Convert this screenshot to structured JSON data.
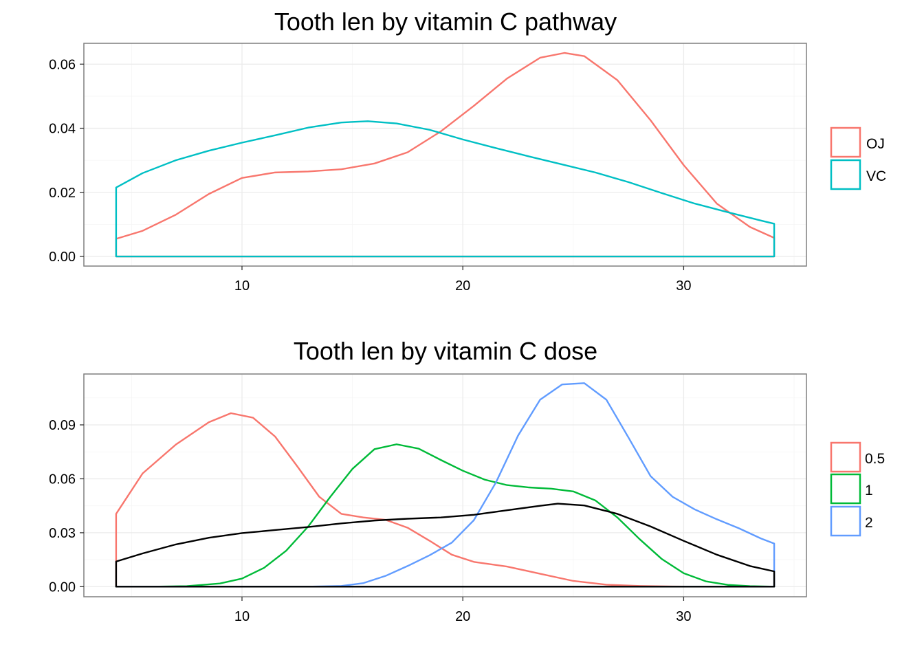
{
  "chart_data": [
    {
      "type": "line",
      "subtype": "density",
      "title": "Tooth len by vitamin C pathway",
      "xlabel": "",
      "ylabel": "",
      "xlim": [
        2.84,
        35.56
      ],
      "ylim": [
        -0.003,
        0.0665
      ],
      "x_ticks": [
        10,
        20,
        30
      ],
      "y_ticks": [
        0.0,
        0.02,
        0.04,
        0.06
      ],
      "x_tick_labels": [
        "10",
        "20",
        "30"
      ],
      "y_tick_labels": [
        "0.00",
        "0.02",
        "0.04",
        "0.06"
      ],
      "x_range": [
        4.3,
        34.1
      ],
      "grid": true,
      "legend": {
        "placement": "right",
        "entries": [
          "OJ",
          "VC"
        ]
      },
      "series": [
        {
          "name": "OJ",
          "color": "#F8766D",
          "x": [
            4.3,
            5.5,
            7,
            8.5,
            10,
            11.5,
            13,
            14.5,
            16,
            17.5,
            19,
            20.5,
            22,
            23.5,
            24.6,
            25.5,
            27,
            28.5,
            30,
            31.5,
            33,
            34.1
          ],
          "y": [
            0.0055,
            0.008,
            0.013,
            0.0195,
            0.0245,
            0.0262,
            0.0265,
            0.0272,
            0.029,
            0.0325,
            0.039,
            0.047,
            0.0555,
            0.062,
            0.0635,
            0.0625,
            0.055,
            0.0425,
            0.0285,
            0.0165,
            0.0092,
            0.0058
          ]
        },
        {
          "name": "VC",
          "color": "#00BFC4",
          "x": [
            4.3,
            5.5,
            7,
            8.5,
            10,
            11.5,
            13,
            14.5,
            15.7,
            17,
            18.5,
            20,
            21.5,
            23,
            24.5,
            26,
            27.5,
            29,
            30.5,
            32,
            33.5,
            34.1
          ],
          "y": [
            0.0215,
            0.026,
            0.03,
            0.033,
            0.0355,
            0.0378,
            0.0402,
            0.0418,
            0.0422,
            0.0415,
            0.0395,
            0.0365,
            0.0338,
            0.0312,
            0.0287,
            0.0262,
            0.0232,
            0.0198,
            0.0165,
            0.0138,
            0.0112,
            0.0102
          ]
        }
      ]
    },
    {
      "type": "line",
      "subtype": "density",
      "title": "Tooth len by vitamin C dose",
      "xlabel": "",
      "ylabel": "",
      "xlim": [
        2.84,
        35.56
      ],
      "ylim": [
        -0.0056,
        0.1183
      ],
      "x_ticks": [
        10,
        20,
        30
      ],
      "y_ticks": [
        0.0,
        0.03,
        0.06,
        0.09
      ],
      "x_tick_labels": [
        "10",
        "20",
        "30"
      ],
      "y_tick_labels": [
        "0.00",
        "0.03",
        "0.06",
        "0.09"
      ],
      "x_range": [
        4.3,
        34.1
      ],
      "grid": true,
      "legend": {
        "placement": "right",
        "entries": [
          "0.5",
          "1",
          "2"
        ]
      },
      "series": [
        {
          "name": "0.5",
          "color": "#F8766D",
          "x": [
            4.3,
            5.5,
            7,
            8.5,
            9.5,
            10.5,
            11.5,
            12.5,
            13.5,
            14.5,
            15.5,
            16.5,
            17.5,
            18.5,
            19.5,
            20.5,
            22,
            23.5,
            25,
            26.5,
            28,
            29.5,
            31,
            32.5,
            34.1
          ],
          "y": [
            0.0405,
            0.063,
            0.079,
            0.0915,
            0.0965,
            0.094,
            0.0835,
            0.067,
            0.05,
            0.0405,
            0.0385,
            0.0372,
            0.0328,
            0.0255,
            0.0178,
            0.0138,
            0.0112,
            0.0072,
            0.0032,
            0.0011,
            0.0004,
            0.0001,
            0.0,
            0.0,
            0.0
          ]
        },
        {
          "name": "1",
          "color": "#00BA38",
          "x": [
            4.3,
            6,
            7.5,
            9,
            10,
            11,
            12,
            13,
            14,
            15,
            16,
            17,
            18,
            19,
            20,
            21,
            22,
            23,
            24,
            25,
            26,
            27,
            28,
            29,
            30,
            31,
            32,
            33,
            34.1
          ],
          "y": [
            0.0,
            0.0,
            0.0003,
            0.0018,
            0.0045,
            0.0105,
            0.02,
            0.0335,
            0.05,
            0.0655,
            0.0765,
            0.0792,
            0.0768,
            0.0705,
            0.0645,
            0.0595,
            0.0565,
            0.0552,
            0.0545,
            0.053,
            0.048,
            0.0385,
            0.0265,
            0.0155,
            0.0075,
            0.003,
            0.001,
            0.0003,
            0.0
          ]
        },
        {
          "name": "2",
          "color": "#619CFF",
          "x": [
            4.3,
            10,
            13,
            14.5,
            15.5,
            16.5,
            17.5,
            18.5,
            19.5,
            20.5,
            21.5,
            22.5,
            23.5,
            24.5,
            25.5,
            26.5,
            27.5,
            28.5,
            29.5,
            30.5,
            31.5,
            32.5,
            33.5,
            34.1
          ],
          "y": [
            0.0,
            0.0,
            0.0,
            0.0004,
            0.002,
            0.006,
            0.0115,
            0.0175,
            0.0245,
            0.037,
            0.058,
            0.084,
            0.104,
            0.1125,
            0.1132,
            0.104,
            0.083,
            0.0615,
            0.05,
            0.043,
            0.0375,
            0.0325,
            0.0268,
            0.024
          ]
        },
        {
          "name": "",
          "color": "#000000",
          "x": [
            4.3,
            5.5,
            7,
            8.5,
            10,
            11.5,
            13,
            14.5,
            16,
            17.5,
            19,
            20.5,
            22,
            23.5,
            24.3,
            25.5,
            27,
            28.5,
            30,
            31.5,
            33,
            34.1
          ],
          "y": [
            0.014,
            0.0185,
            0.0235,
            0.0272,
            0.0298,
            0.0315,
            0.0332,
            0.0352,
            0.0368,
            0.0378,
            0.0385,
            0.04,
            0.0425,
            0.045,
            0.0462,
            0.0452,
            0.0405,
            0.0335,
            0.0255,
            0.0178,
            0.0115,
            0.0085
          ]
        }
      ]
    }
  ]
}
